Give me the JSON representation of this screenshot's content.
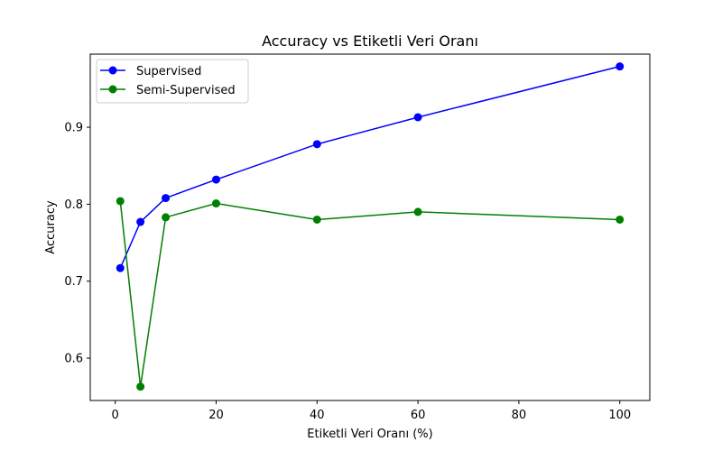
{
  "chart_data": {
    "type": "line",
    "title": "Accuracy vs Etiketli Veri Oranı",
    "xlabel": "Etiketli Veri Oranı (%)",
    "ylabel": "Accuracy",
    "xlim": [
      -4.95,
      105.95
    ],
    "ylim": [
      0.545,
      0.995
    ],
    "xticks": [
      0,
      20,
      40,
      60,
      80,
      100
    ],
    "yticks": [
      0.6,
      0.7,
      0.8,
      0.9
    ],
    "grid": false,
    "legend": "top-left",
    "x": [
      1,
      5,
      10,
      20,
      40,
      60,
      100
    ],
    "series": [
      {
        "name": "Supervised",
        "color": "#0000ff",
        "values": [
          0.717,
          0.777,
          0.808,
          0.832,
          0.878,
          0.913,
          0.979
        ]
      },
      {
        "name": "Semi-Supervised",
        "color": "#008000",
        "values": [
          0.804,
          0.563,
          0.783,
          0.801,
          0.78,
          0.79,
          0.78
        ]
      }
    ]
  }
}
